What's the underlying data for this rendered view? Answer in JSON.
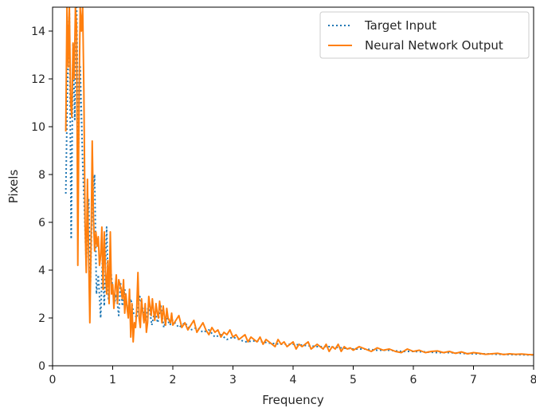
{
  "chart_data": {
    "type": "line",
    "title": "",
    "xlabel": "Frequency",
    "ylabel": "Pixels",
    "xlim": [
      0,
      8
    ],
    "ylim": [
      0,
      15
    ],
    "xticks": [
      0,
      1,
      2,
      3,
      4,
      5,
      6,
      7,
      8
    ],
    "yticks": [
      0,
      2,
      4,
      6,
      8,
      10,
      12,
      14
    ],
    "grid": false,
    "legend_position": "top-right",
    "series": [
      {
        "name": "Target Input",
        "color": "#1f77b4",
        "style": "dotted",
        "x": [
          0.22,
          0.25,
          0.28,
          0.31,
          0.34,
          0.37,
          0.4,
          0.43,
          0.46,
          0.5,
          0.53,
          0.56,
          0.6,
          0.63,
          0.66,
          0.7,
          0.73,
          0.76,
          0.8,
          0.83,
          0.86,
          0.9,
          0.93,
          0.96,
          1.0,
          1.03,
          1.06,
          1.1,
          1.13,
          1.16,
          1.2,
          1.25,
          1.3,
          1.35,
          1.4,
          1.45,
          1.5,
          1.55,
          1.6,
          1.65,
          1.7,
          1.75,
          1.8,
          1.85,
          1.9,
          1.95,
          2.0,
          2.1,
          2.2,
          2.3,
          2.4,
          2.5,
          2.6,
          2.7,
          2.8,
          2.9,
          3.0,
          3.2,
          3.4,
          3.6,
          3.8,
          4.0,
          4.2,
          4.4,
          4.6,
          4.8,
          5.0,
          5.2,
          5.4,
          5.6,
          5.8,
          6.0,
          6.2,
          6.4,
          6.6,
          6.8,
          7.0,
          7.2,
          7.4,
          7.6,
          7.8,
          8.0
        ],
        "y": [
          7.2,
          12.0,
          14.8,
          5.3,
          13.5,
          10.3,
          15.0,
          9.0,
          12.5,
          8.5,
          6.5,
          4.2,
          7.0,
          3.5,
          6.8,
          8.0,
          3.0,
          3.8,
          2.0,
          4.5,
          2.5,
          5.8,
          2.8,
          4.2,
          3.2,
          2.6,
          3.0,
          2.1,
          3.5,
          2.5,
          3.2,
          2.3,
          2.8,
          2.2,
          2.0,
          2.9,
          2.4,
          1.9,
          2.6,
          1.7,
          2.3,
          1.8,
          2.5,
          1.6,
          2.0,
          1.7,
          1.9,
          1.6,
          1.8,
          1.5,
          1.6,
          1.4,
          1.5,
          1.2,
          1.3,
          1.1,
          1.2,
          1.0,
          1.05,
          0.95,
          0.9,
          0.9,
          0.85,
          0.8,
          0.8,
          0.75,
          0.7,
          0.7,
          0.65,
          0.65,
          0.6,
          0.6,
          0.58,
          0.55,
          0.55,
          0.52,
          0.5,
          0.5,
          0.48,
          0.47,
          0.46,
          0.45
        ]
      },
      {
        "name": "Neural Network Output",
        "color": "#ff7f0e",
        "style": "solid",
        "x": [
          0.22,
          0.24,
          0.26,
          0.28,
          0.3,
          0.32,
          0.34,
          0.36,
          0.38,
          0.4,
          0.42,
          0.44,
          0.46,
          0.48,
          0.5,
          0.52,
          0.54,
          0.56,
          0.58,
          0.6,
          0.62,
          0.64,
          0.66,
          0.68,
          0.7,
          0.72,
          0.74,
          0.76,
          0.78,
          0.8,
          0.82,
          0.84,
          0.86,
          0.88,
          0.9,
          0.92,
          0.94,
          0.96,
          0.98,
          1.0,
          1.02,
          1.04,
          1.06,
          1.08,
          1.1,
          1.12,
          1.14,
          1.16,
          1.18,
          1.2,
          1.22,
          1.24,
          1.26,
          1.28,
          1.3,
          1.32,
          1.34,
          1.36,
          1.38,
          1.4,
          1.42,
          1.44,
          1.46,
          1.48,
          1.5,
          1.52,
          1.54,
          1.56,
          1.58,
          1.6,
          1.62,
          1.64,
          1.66,
          1.68,
          1.7,
          1.72,
          1.74,
          1.76,
          1.78,
          1.8,
          1.82,
          1.84,
          1.86,
          1.88,
          1.9,
          1.92,
          1.94,
          1.96,
          1.98,
          2.0,
          2.05,
          2.1,
          2.15,
          2.2,
          2.25,
          2.3,
          2.35,
          2.4,
          2.45,
          2.5,
          2.55,
          2.6,
          2.65,
          2.7,
          2.75,
          2.8,
          2.85,
          2.9,
          2.95,
          3.0,
          3.05,
          3.1,
          3.15,
          3.2,
          3.25,
          3.3,
          3.35,
          3.4,
          3.45,
          3.5,
          3.55,
          3.6,
          3.65,
          3.7,
          3.75,
          3.8,
          3.85,
          3.9,
          3.95,
          4.0,
          4.05,
          4.1,
          4.15,
          4.2,
          4.25,
          4.3,
          4.35,
          4.4,
          4.45,
          4.5,
          4.55,
          4.6,
          4.65,
          4.7,
          4.75,
          4.8,
          4.85,
          4.9,
          4.95,
          5.0,
          5.1,
          5.2,
          5.3,
          5.4,
          5.5,
          5.6,
          5.7,
          5.8,
          5.9,
          6.0,
          6.1,
          6.2,
          6.3,
          6.4,
          6.5,
          6.6,
          6.7,
          6.8,
          6.9,
          7.0,
          7.1,
          7.2,
          7.3,
          7.4,
          7.5,
          7.6,
          7.7,
          7.8,
          7.9,
          8.0
        ],
        "y": [
          9.8,
          15.0,
          12.5,
          15.0,
          11.0,
          10.4,
          13.5,
          12.0,
          15.0,
          14.2,
          4.2,
          11.0,
          15.0,
          14.0,
          15.0,
          11.5,
          6.0,
          3.9,
          7.8,
          4.6,
          1.8,
          5.0,
          9.4,
          6.2,
          4.8,
          5.6,
          5.0,
          5.4,
          4.2,
          4.6,
          5.8,
          3.2,
          5.6,
          4.0,
          3.0,
          4.4,
          2.6,
          5.6,
          3.0,
          3.4,
          2.4,
          3.2,
          3.8,
          2.6,
          3.6,
          3.4,
          3.2,
          2.8,
          3.6,
          2.2,
          3.0,
          2.4,
          2.0,
          3.2,
          1.2,
          2.6,
          1.0,
          1.8,
          1.6,
          2.4,
          3.9,
          2.0,
          1.6,
          2.8,
          2.2,
          1.8,
          2.6,
          1.4,
          1.8,
          2.9,
          2.5,
          2.1,
          2.8,
          2.3,
          1.9,
          2.6,
          2.2,
          2.0,
          2.7,
          2.3,
          1.8,
          2.5,
          2.1,
          1.7,
          2.4,
          2.0,
          1.9,
          1.8,
          2.2,
          1.7,
          1.9,
          2.1,
          1.6,
          1.8,
          1.5,
          1.7,
          1.9,
          1.4,
          1.6,
          1.8,
          1.5,
          1.3,
          1.6,
          1.4,
          1.5,
          1.2,
          1.4,
          1.3,
          1.5,
          1.2,
          1.3,
          1.1,
          1.2,
          1.3,
          1.0,
          1.2,
          1.1,
          1.0,
          1.2,
          0.9,
          1.1,
          1.0,
          0.9,
          0.8,
          1.1,
          0.9,
          1.0,
          0.8,
          0.9,
          1.0,
          0.7,
          0.9,
          0.8,
          0.9,
          1.0,
          0.7,
          0.8,
          0.9,
          0.8,
          0.7,
          0.9,
          0.6,
          0.8,
          0.7,
          0.9,
          0.6,
          0.8,
          0.7,
          0.75,
          0.65,
          0.8,
          0.7,
          0.6,
          0.75,
          0.65,
          0.7,
          0.6,
          0.55,
          0.7,
          0.6,
          0.65,
          0.55,
          0.6,
          0.62,
          0.55,
          0.6,
          0.52,
          0.58,
          0.5,
          0.55,
          0.52,
          0.48,
          0.5,
          0.52,
          0.47,
          0.5,
          0.48,
          0.49,
          0.47,
          0.46
        ]
      }
    ]
  }
}
